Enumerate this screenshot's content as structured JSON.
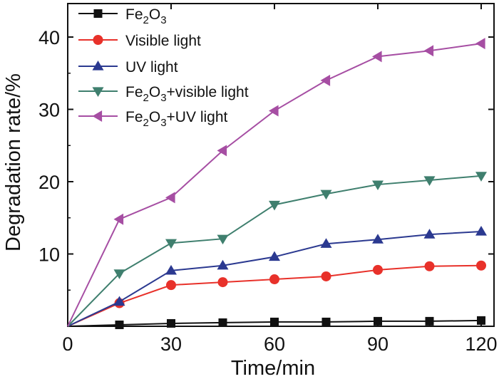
{
  "chart_data": {
    "type": "line",
    "title": "",
    "xlabel": "Time/min",
    "ylabel": "Degradation rate/%",
    "xlim": [
      0,
      120
    ],
    "ylim": [
      0,
      45
    ],
    "xticks": [
      0,
      30,
      60,
      90,
      120
    ],
    "yticks": [
      10,
      20,
      30,
      40
    ],
    "x_tick_labels": [
      "0",
      "30",
      "60",
      "90",
      "120"
    ],
    "y_tick_labels": [
      "10",
      "20",
      "30",
      "40"
    ],
    "legend_position": "top-left",
    "x": [
      0,
      15,
      30,
      45,
      60,
      75,
      90,
      105,
      120
    ],
    "series": [
      {
        "name": "Fe2O3",
        "legend": {
          "parts": [
            {
              "t": "Fe"
            },
            {
              "t": "2",
              "sub": true
            },
            {
              "t": "O"
            },
            {
              "t": "3",
              "sub": true
            }
          ]
        },
        "color": "#111111",
        "marker": "square",
        "values": [
          0,
          0.2,
          0.4,
          0.5,
          0.6,
          0.6,
          0.7,
          0.7,
          0.8
        ]
      },
      {
        "name": "Visible light",
        "legend": {
          "parts": [
            {
              "t": "Visible light"
            }
          ]
        },
        "color": "#e8312a",
        "marker": "circle",
        "values": [
          0,
          3.2,
          5.7,
          6.1,
          6.5,
          6.9,
          7.8,
          8.3,
          8.4
        ]
      },
      {
        "name": "UV light",
        "legend": {
          "parts": [
            {
              "t": "UV light"
            }
          ]
        },
        "color": "#2b3990",
        "marker": "triangle-up",
        "values": [
          0,
          3.4,
          7.7,
          8.4,
          9.6,
          11.4,
          12.0,
          12.7,
          13.1
        ]
      },
      {
        "name": "Fe2O3+visible light",
        "legend": {
          "parts": [
            {
              "t": "Fe"
            },
            {
              "t": "2",
              "sub": true
            },
            {
              "t": "O"
            },
            {
              "t": "3",
              "sub": true
            },
            {
              "t": "+visible light"
            }
          ]
        },
        "color": "#3f7f6e",
        "marker": "triangle-down",
        "values": [
          0,
          7.3,
          11.5,
          12.1,
          16.8,
          18.3,
          19.6,
          20.2,
          20.8
        ]
      },
      {
        "name": "Fe2O3+UV light",
        "legend": {
          "parts": [
            {
              "t": "Fe"
            },
            {
              "t": "2",
              "sub": true
            },
            {
              "t": "O"
            },
            {
              "t": "3",
              "sub": true
            },
            {
              "t": "+UV light"
            }
          ]
        },
        "color": "#a64ea3",
        "marker": "triangle-left",
        "values": [
          0,
          14.8,
          17.8,
          24.3,
          29.8,
          34.0,
          37.3,
          38.1,
          39.1
        ]
      }
    ]
  }
}
